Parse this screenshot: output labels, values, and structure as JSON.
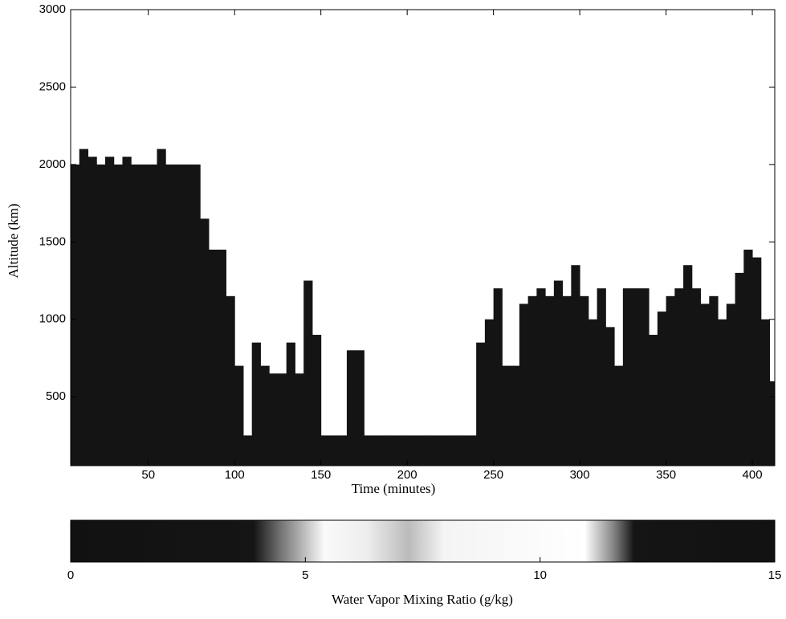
{
  "chart_data": {
    "type": "heatmap",
    "x_label": "Time (minutes)",
    "y_label": "Altitude (km)",
    "xlim": [
      5,
      413
    ],
    "xticks": [
      50,
      100,
      150,
      200,
      250,
      300,
      350,
      400
    ],
    "ylim": [
      55,
      3000
    ],
    "yticks": [
      500,
      1000,
      1500,
      2000,
      2500,
      3000
    ],
    "color": "#141414",
    "x": [
      5,
      10,
      15,
      20,
      25,
      30,
      35,
      40,
      45,
      50,
      55,
      60,
      65,
      70,
      75,
      80,
      85,
      90,
      95,
      100,
      105,
      110,
      115,
      120,
      125,
      130,
      135,
      140,
      145,
      150,
      155,
      160,
      165,
      170,
      175,
      180,
      185,
      190,
      195,
      200,
      205,
      210,
      215,
      220,
      225,
      230,
      235,
      240,
      245,
      250,
      255,
      260,
      265,
      270,
      275,
      280,
      285,
      290,
      295,
      300,
      305,
      310,
      315,
      320,
      325,
      330,
      335,
      340,
      345,
      350,
      355,
      360,
      365,
      370,
      375,
      380,
      385,
      390,
      395,
      400,
      405,
      410
    ],
    "values": [
      2000,
      2100,
      2050,
      2000,
      2050,
      2000,
      2050,
      2000,
      2000,
      2000,
      2100,
      2000,
      2000,
      2000,
      2000,
      1650,
      1450,
      1450,
      1150,
      700,
      250,
      850,
      700,
      650,
      650,
      850,
      650,
      1250,
      900,
      250,
      250,
      250,
      800,
      800,
      250,
      250,
      250,
      250,
      250,
      250,
      250,
      250,
      250,
      250,
      250,
      250,
      250,
      850,
      1000,
      1200,
      700,
      700,
      1100,
      1150,
      1200,
      1150,
      1250,
      1150,
      1350,
      1150,
      1000,
      1200,
      950,
      700,
      1200,
      1200,
      1200,
      900,
      1050,
      1150,
      1200,
      1350,
      1200,
      1100,
      1150,
      1000,
      1100,
      1300,
      1450,
      1400,
      1000,
      600
    ],
    "colorbar": {
      "label": "Water Vapor Mixing Ratio (g/kg)",
      "lim": [
        0,
        15
      ],
      "ticks": [
        0,
        5,
        10,
        15
      ]
    }
  }
}
